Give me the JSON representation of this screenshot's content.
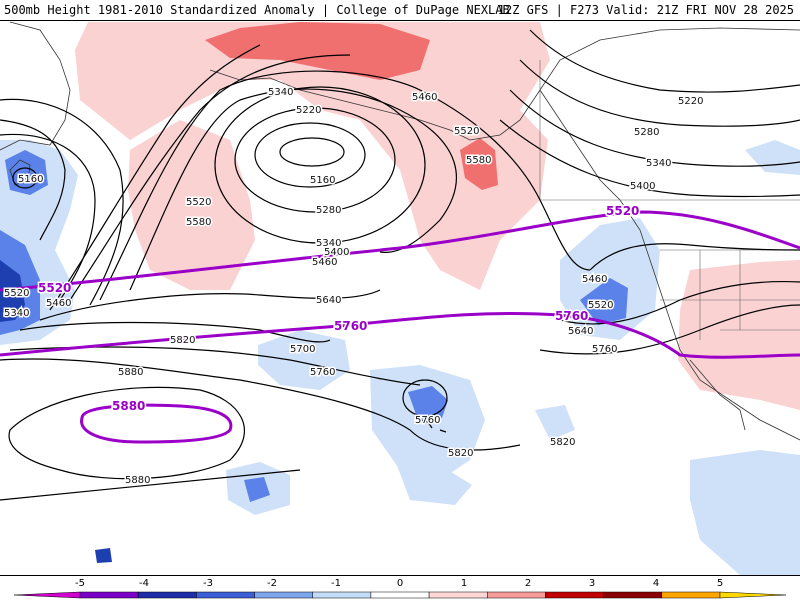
{
  "header": {
    "left": "500mb Height 1981-2010 Standardized Anomaly | College of DuPage NEXLAB",
    "right": "12Z GFS | F273 Valid: 21Z FRI NOV 28 2025"
  },
  "height_labels": [
    "5340",
    "5220",
    "5460",
    "5160",
    "5280",
    "5520",
    "5580",
    "5520",
    "5580",
    "5400",
    "5340",
    "5460",
    "5640",
    "5700",
    "5760",
    "5820",
    "5880",
    "5880",
    "5520",
    "5340",
    "5460",
    "5760",
    "5820",
    "5820",
    "5460",
    "5520",
    "5640",
    "5760",
    "5220",
    "5280",
    "5340",
    "5400",
    "5160"
  ],
  "reference_labels": [
    "5520",
    "5520",
    "5760",
    "5760",
    "5880"
  ],
  "colorbar": {
    "ticks": [
      "-5",
      "-4",
      "-3",
      "-2",
      "-1",
      "0",
      "1",
      "2",
      "3",
      "4",
      "5"
    ],
    "colors": [
      "#d100d1",
      "#7b00c8",
      "#1f2ea8",
      "#3c5ed6",
      "#7ea6ee",
      "#c4dcf7",
      "#ffffff",
      "#fdd6d6",
      "#f79a9a",
      "#c00000",
      "#8b0000",
      "#ffa500",
      "#ffd800"
    ]
  },
  "anomaly_colors": {
    "neg1": "#cfe1f8",
    "neg2": "#5a82e8",
    "neg3": "#1e3fb0",
    "pos1": "#fad2d2",
    "pos2": "#f07070"
  }
}
